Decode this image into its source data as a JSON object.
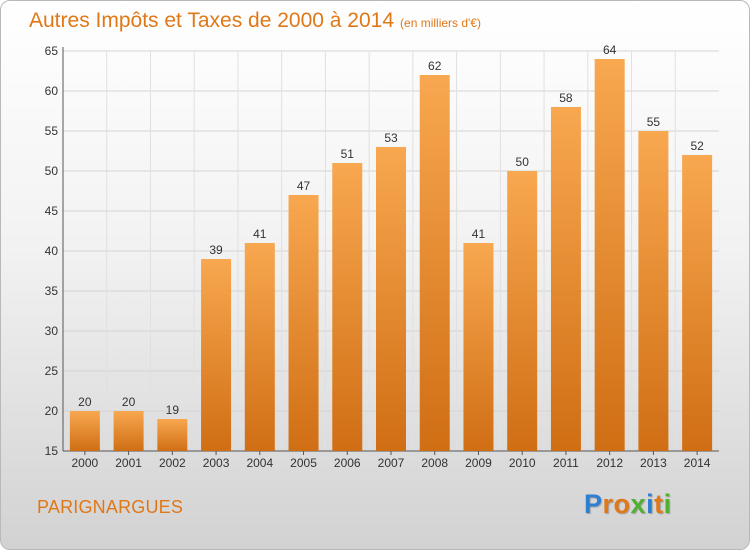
{
  "header": {
    "title": "Autres Impôts et Taxes de 2000 à 2014",
    "unit": "(en milliers d'€)"
  },
  "footer": {
    "place": "PARIGNARGUES",
    "logo": [
      "P",
      "r",
      "o",
      "x",
      "i",
      "t",
      "i"
    ]
  },
  "colors": {
    "accent": "#e07818",
    "bar_top": "#f8a850",
    "bar_bottom": "#d06e14",
    "logo": [
      "#2f7fd0",
      "#e07818",
      "#e07818",
      "#50b030",
      "#2f7fd0",
      "#e07818",
      "#50b030"
    ]
  },
  "chart_data": {
    "type": "bar",
    "title": "Autres Impôts et Taxes de 2000 à 2014",
    "subtitle": "(en milliers d'€)",
    "xlabel": "",
    "ylabel": "",
    "categories": [
      "2000",
      "2001",
      "2002",
      "2003",
      "2004",
      "2005",
      "2006",
      "2007",
      "2008",
      "2009",
      "2010",
      "2011",
      "2012",
      "2013",
      "2014"
    ],
    "values": [
      20,
      20,
      19,
      39,
      41,
      47,
      51,
      53,
      62,
      41,
      50,
      58,
      64,
      55,
      52
    ],
    "ylim": [
      15,
      65
    ],
    "yticks": [
      15,
      20,
      25,
      30,
      35,
      40,
      45,
      50,
      55,
      60,
      65
    ],
    "grid": true
  }
}
